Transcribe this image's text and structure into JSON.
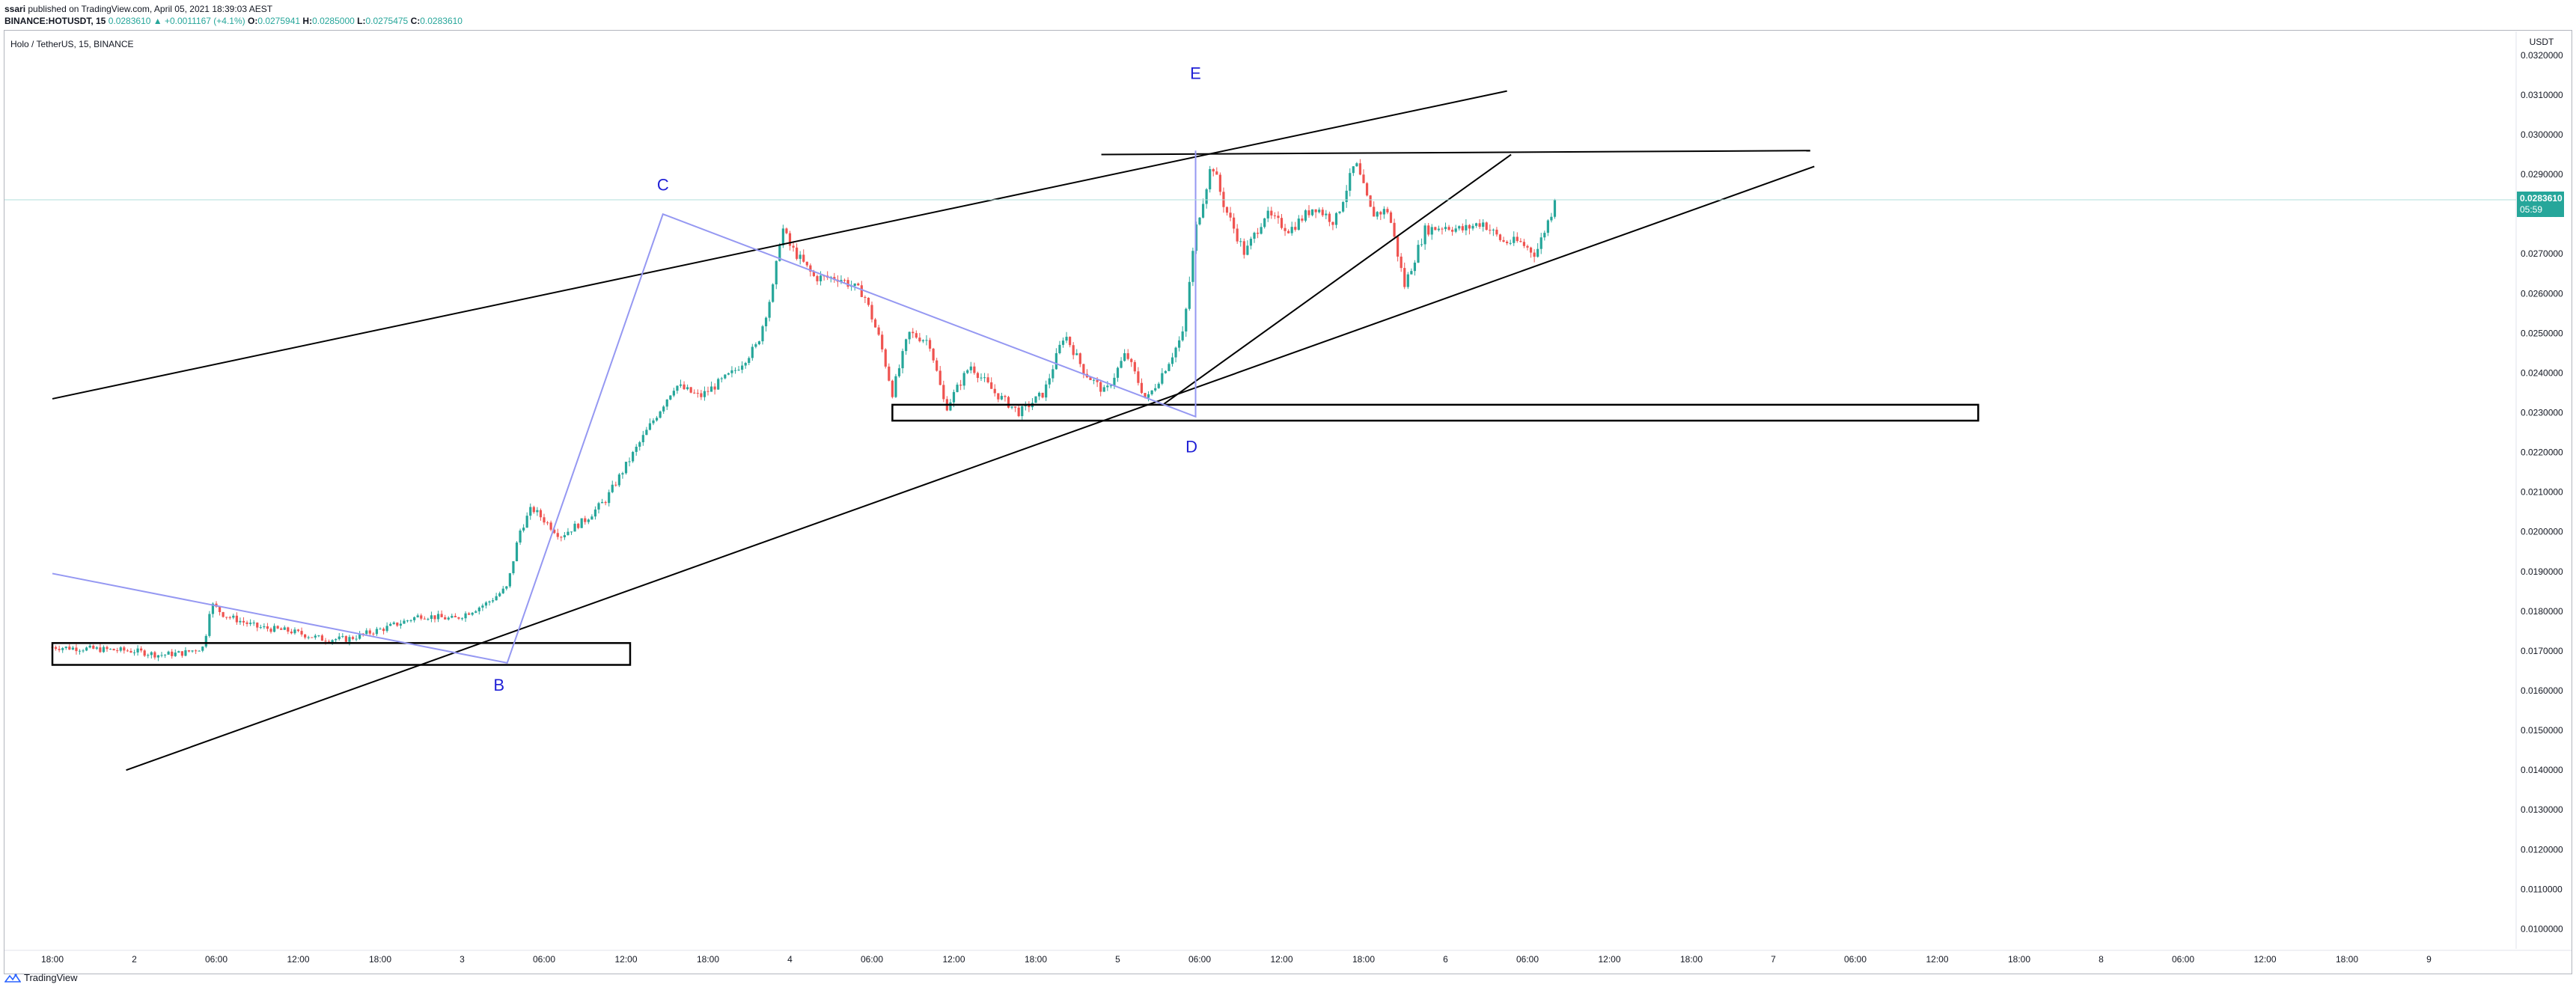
{
  "header": {
    "author": "ssari",
    "published_text": "published on TradingView.com, April 05, 2021 18:39:03 AEST",
    "symbol_line": "BINANCE:HOTUSDT, 15",
    "price": "0.0283610",
    "change": "▲ +0.0011167 (+4.1%)",
    "o_label": "O:",
    "o_value": "0.0275941",
    "h_label": "H:",
    "h_value": "0.0285000",
    "l_label": "L:",
    "l_value": "0.0275475",
    "c_label": "C:",
    "c_value": "0.0283610"
  },
  "symbol_title": "Holo / TetherUS, 15, BINANCE",
  "footer": {
    "brand": "TradingView",
    "icon": "tradingview-logo-icon"
  },
  "colors": {
    "up": "#26a69a",
    "down": "#ef5350",
    "pattern": "#9598f2",
    "trendline": "#000000",
    "label": "#1f1fd6",
    "price_line": "#b2dfdb",
    "price_tag": "#26a69a"
  },
  "chart_data": {
    "type": "candlestick",
    "title": "Holo / TetherUS, 15, BINANCE",
    "currency_label": "USDT",
    "interval_minutes": 15,
    "x_ticks": [
      "18:00",
      "2",
      "06:00",
      "12:00",
      "18:00",
      "3",
      "06:00",
      "12:00",
      "18:00",
      "4",
      "06:00",
      "12:00",
      "18:00",
      "5",
      "06:00",
      "12:00",
      "18:00",
      "6",
      "06:00",
      "12:00",
      "18:00",
      "7",
      "06:00",
      "12:00",
      "18:00",
      "8",
      "06:00",
      "12:00",
      "18:00",
      "9"
    ],
    "y_ticks": [
      "0.0320000",
      "0.0310000",
      "0.0300000",
      "0.0290000",
      "0.0280000",
      "0.0270000",
      "0.0260000",
      "0.0250000",
      "0.0240000",
      "0.0230000",
      "0.0220000",
      "0.0210000",
      "0.0200000",
      "0.0190000",
      "0.0180000",
      "0.0170000",
      "0.0160000",
      "0.0150000",
      "0.0140000",
      "0.0130000",
      "0.0120000",
      "0.0110000",
      "0.0100000"
    ],
    "ylim": [
      0.0095,
      0.0326
    ],
    "last_price": "0.0283610",
    "countdown": "05:59",
    "grid": false,
    "price_anchors": [
      [
        0.0,
        0.0171
      ],
      [
        1.0,
        0.017
      ],
      [
        1.3,
        0.0169
      ],
      [
        1.6,
        0.01695
      ],
      [
        1.85,
        0.0171
      ],
      [
        1.93,
        0.0182
      ],
      [
        2.1,
        0.0179
      ],
      [
        2.5,
        0.0176
      ],
      [
        2.9,
        0.0175
      ],
      [
        3.3,
        0.0173
      ],
      [
        3.6,
        0.0173
      ],
      [
        4.1,
        0.0176
      ],
      [
        4.5,
        0.0179
      ],
      [
        4.9,
        0.0178
      ],
      [
        5.3,
        0.0182
      ],
      [
        5.55,
        0.0186
      ],
      [
        5.7,
        0.02
      ],
      [
        5.85,
        0.0206
      ],
      [
        6.2,
        0.0199
      ],
      [
        6.5,
        0.0203
      ],
      [
        6.75,
        0.0208
      ],
      [
        6.95,
        0.0215
      ],
      [
        7.3,
        0.0227
      ],
      [
        7.6,
        0.0237
      ],
      [
        7.9,
        0.0234
      ],
      [
        8.3,
        0.024
      ],
      [
        8.6,
        0.0247
      ],
      [
        8.8,
        0.0262
      ],
      [
        8.9,
        0.0277
      ],
      [
        9.0,
        0.0272
      ],
      [
        9.3,
        0.0264
      ],
      [
        9.6,
        0.0264
      ],
      [
        9.9,
        0.026
      ],
      [
        10.1,
        0.0248
      ],
      [
        10.25,
        0.0235
      ],
      [
        10.45,
        0.025
      ],
      [
        10.7,
        0.0248
      ],
      [
        10.9,
        0.0231
      ],
      [
        11.2,
        0.0242
      ],
      [
        11.5,
        0.0235
      ],
      [
        11.8,
        0.023
      ],
      [
        12.1,
        0.0235
      ],
      [
        12.35,
        0.025
      ],
      [
        12.6,
        0.024
      ],
      [
        12.85,
        0.0235
      ],
      [
        13.1,
        0.0245
      ],
      [
        13.35,
        0.0233
      ],
      [
        13.6,
        0.0242
      ],
      [
        13.8,
        0.025
      ],
      [
        13.95,
        0.0276
      ],
      [
        14.15,
        0.0293
      ],
      [
        14.3,
        0.0282
      ],
      [
        14.55,
        0.027
      ],
      [
        14.8,
        0.028
      ],
      [
        15.1,
        0.0276
      ],
      [
        15.4,
        0.0282
      ],
      [
        15.65,
        0.0278
      ],
      [
        15.9,
        0.0293
      ],
      [
        16.1,
        0.028
      ],
      [
        16.3,
        0.0281
      ],
      [
        16.5,
        0.0262
      ],
      [
        16.75,
        0.0276
      ],
      [
        17.0,
        0.0277
      ],
      [
        17.2,
        0.0276
      ],
      [
        17.45,
        0.0278
      ],
      [
        17.7,
        0.0273
      ],
      [
        17.9,
        0.0273
      ],
      [
        18.1,
        0.027
      ],
      [
        18.35,
        0.02836
      ]
    ],
    "annotations": {
      "labels": [
        {
          "text": "B",
          "t": 5.45,
          "y": 0.016
        },
        {
          "text": "C",
          "t": 7.45,
          "y": 0.0286
        },
        {
          "text": "D",
          "t": 13.9,
          "y": 0.022
        },
        {
          "text": "E",
          "t": 13.95,
          "y": 0.0314
        }
      ],
      "pattern_path": [
        [
          0.0,
          0.01895
        ],
        [
          5.55,
          0.0167
        ],
        [
          7.45,
          0.028
        ],
        [
          13.95,
          0.0229
        ],
        [
          13.95,
          0.0296
        ]
      ],
      "trendlines": [
        {
          "from": [
            0.0,
            0.02335
          ],
          "to": [
            17.75,
            0.0311
          ]
        },
        {
          "from": [
            0.9,
            0.014
          ],
          "to": [
            21.5,
            0.0292
          ]
        },
        {
          "from": [
            12.8,
            0.0295
          ],
          "to": [
            21.45,
            0.0296
          ]
        },
        {
          "from": [
            13.55,
            0.0232
          ],
          "to": [
            17.8,
            0.0295
          ]
        }
      ],
      "zones": [
        {
          "t1": 0.0,
          "t2": 7.05,
          "y_top": 0.0172,
          "y_bottom": 0.01665
        },
        {
          "t1": 10.25,
          "t2": 23.5,
          "y_top": 0.0232,
          "y_bottom": 0.0228
        }
      ]
    }
  }
}
